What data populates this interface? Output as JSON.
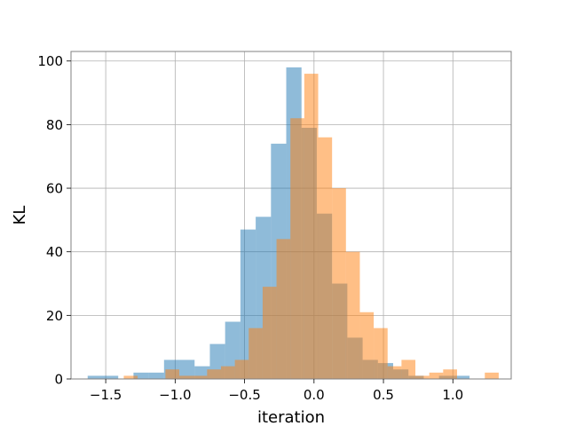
{
  "chart_data": {
    "type": "histogram",
    "title": "",
    "xlabel": "iteration",
    "ylabel": "KL",
    "xlim": [
      -1.75,
      1.42
    ],
    "ylim": [
      0,
      103
    ],
    "grid": true,
    "x_ticks": [
      -1.5,
      -1.0,
      -0.5,
      0.0,
      0.5,
      1.0
    ],
    "x_tick_labels": [
      "−1.5",
      "−1.0",
      "−0.5",
      "0.0",
      "0.5",
      "1.0"
    ],
    "y_ticks": [
      0,
      20,
      40,
      60,
      80,
      100
    ],
    "y_tick_labels": [
      "0",
      "20",
      "40",
      "60",
      "80",
      "100"
    ],
    "series": [
      {
        "color": "#1f77b4",
        "opacity": 0.5,
        "bin_edges": [
          -1.63,
          -1.52,
          -1.41,
          -1.3,
          -1.19,
          -1.08,
          -0.97,
          -0.86,
          -0.75,
          -0.64,
          -0.53,
          -0.42,
          -0.31,
          -0.2,
          -0.09,
          0.02,
          0.13,
          0.24,
          0.35,
          0.46,
          0.57,
          0.68,
          0.79,
          0.9,
          1.01,
          1.12
        ],
        "counts": [
          1,
          1,
          0,
          2,
          2,
          6,
          6,
          4,
          11,
          18,
          47,
          51,
          74,
          98,
          79,
          52,
          30,
          13,
          6,
          5,
          3,
          1,
          0,
          1,
          1
        ]
      },
      {
        "color": "#ff7f0e",
        "opacity": 0.5,
        "bin_edges": [
          -1.37,
          -1.27,
          -1.17,
          -1.07,
          -0.97,
          -0.87,
          -0.77,
          -0.67,
          -0.57,
          -0.47,
          -0.37,
          -0.27,
          -0.17,
          -0.07,
          0.03,
          0.13,
          0.23,
          0.33,
          0.43,
          0.53,
          0.63,
          0.73,
          0.83,
          0.93,
          1.03,
          1.13,
          1.23,
          1.33
        ],
        "counts": [
          1,
          0,
          0,
          3,
          1,
          1,
          3,
          4,
          6,
          16,
          29,
          44,
          82,
          96,
          76,
          60,
          40,
          21,
          16,
          4,
          6,
          1,
          2,
          3,
          0,
          0,
          2
        ]
      }
    ]
  }
}
